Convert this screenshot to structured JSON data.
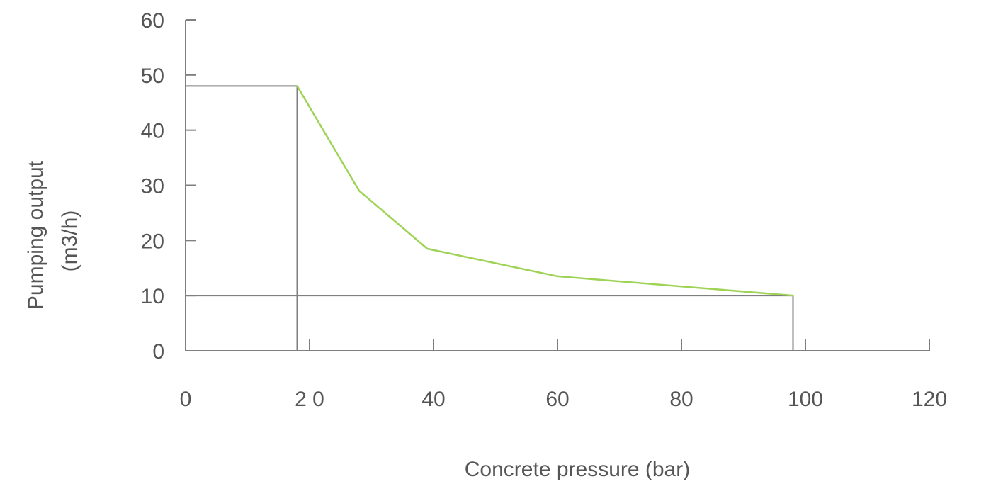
{
  "chart_data": {
    "type": "line",
    "title": "",
    "xlabel": "Concrete pressure (bar)",
    "ylabel_lines": [
      "Pumping output",
      "(m3/h)"
    ],
    "x_ticks": [
      0,
      20,
      40,
      60,
      80,
      100,
      120
    ],
    "x_tick_labels": [
      "0",
      "2 0",
      "40",
      "60",
      "80",
      "100",
      "120"
    ],
    "y_ticks": [
      0,
      10,
      20,
      30,
      40,
      50,
      60
    ],
    "y_tick_labels": [
      "0",
      "10",
      "20",
      "30",
      "40",
      "50",
      "60"
    ],
    "xlim": [
      0,
      120
    ],
    "ylim": [
      0,
      60
    ],
    "grid": false,
    "series": [
      {
        "color": "#9ed356",
        "x": [
          18,
          28,
          39,
          60,
          98
        ],
        "y": [
          48,
          29,
          18.5,
          13.5,
          10
        ]
      }
    ],
    "reference_lines": [
      {
        "x": [
          0,
          18
        ],
        "y": [
          48,
          48
        ]
      },
      {
        "x": [
          18,
          18
        ],
        "y": [
          48,
          0
        ]
      },
      {
        "x": [
          0,
          98
        ],
        "y": [
          10,
          10
        ]
      },
      {
        "x": [
          98,
          98
        ],
        "y": [
          10,
          0
        ]
      }
    ],
    "axis_color": "#7f7f7f",
    "reference_color": "#7f7f7f"
  }
}
